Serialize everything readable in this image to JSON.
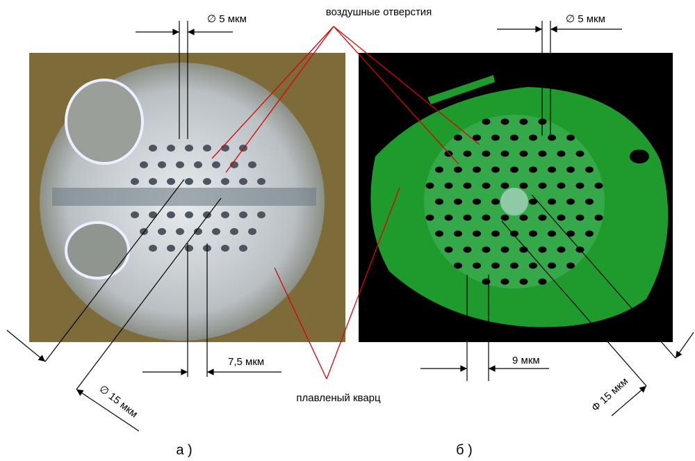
{
  "labels": {
    "air_holes": "воздушные отверстия",
    "hole_diameter_left": "∅ 5 мкм",
    "hole_diameter_right": "∅ 5 мкм",
    "pitch_left": "7,5 мкм",
    "pitch_right": "9 мкм",
    "core_left": "∅ 15 мкм",
    "core_right": "Φ 15 мкм",
    "silica": "плавленый кварц",
    "panel_a": "а )",
    "panel_b": "б )"
  }
}
